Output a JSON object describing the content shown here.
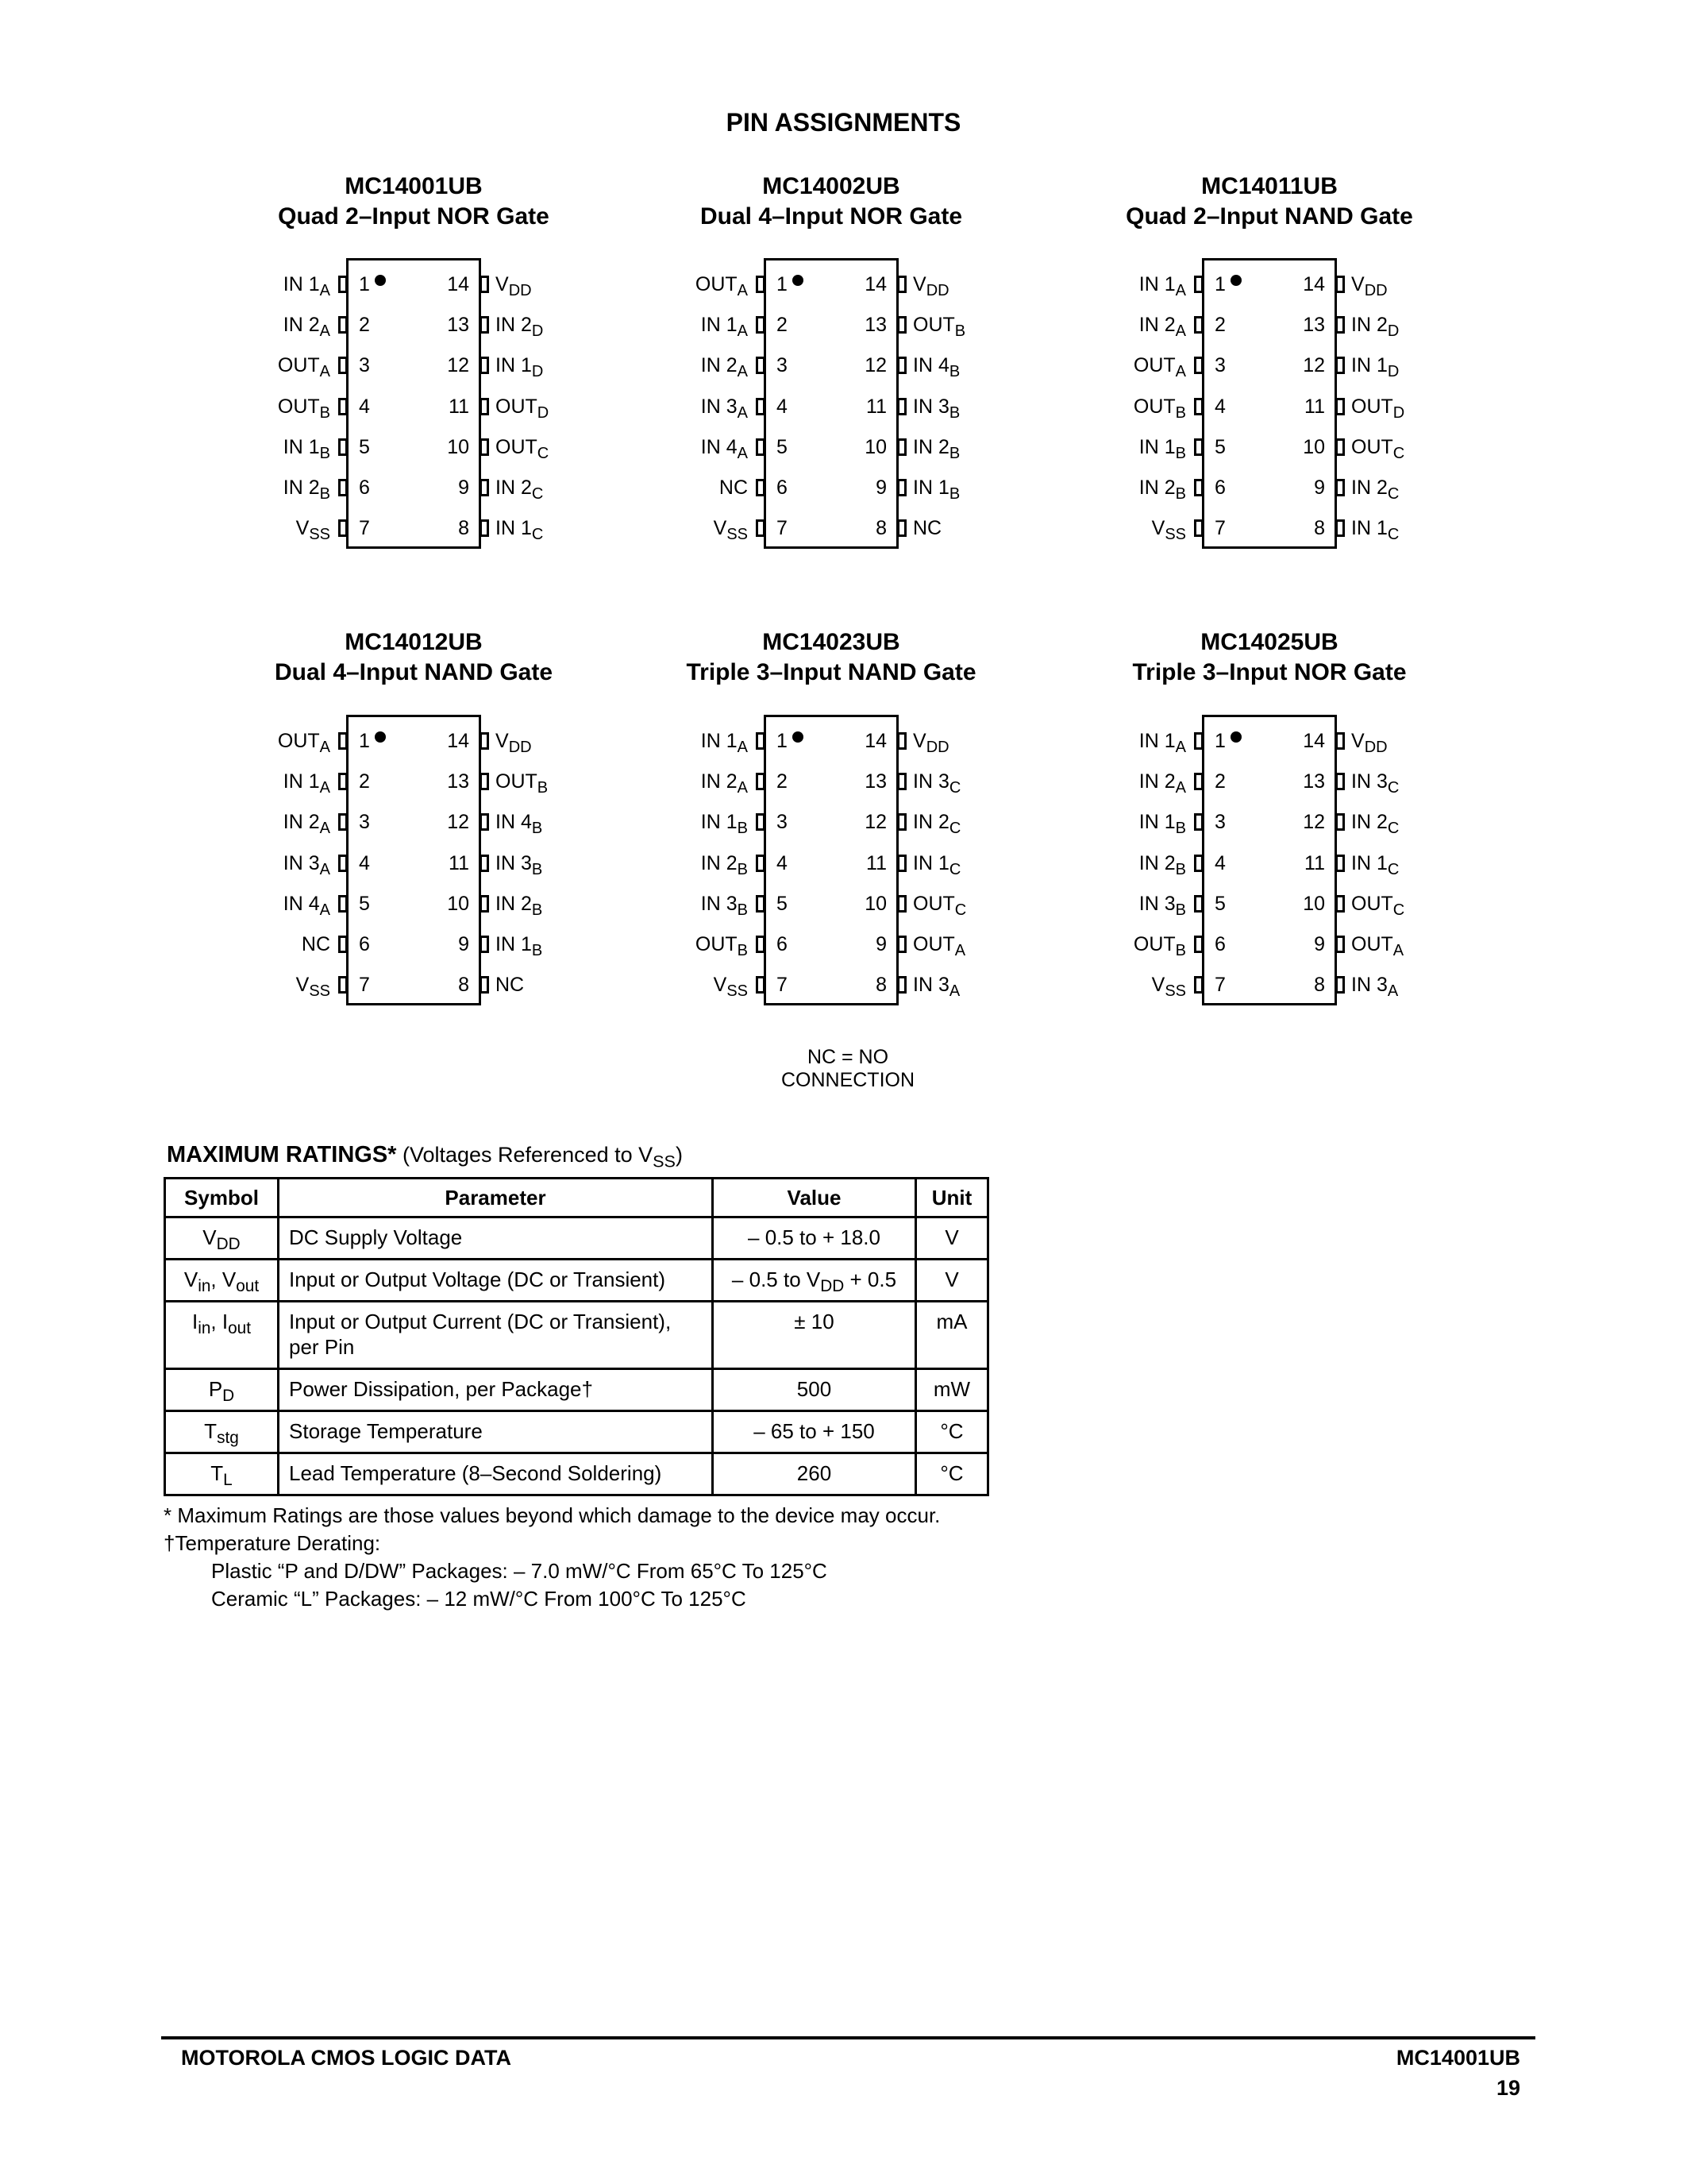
{
  "heading": "PIN ASSIGNMENTS",
  "chips": [
    {
      "part": "MC14001UB",
      "desc": "Quad 2–Input NOR Gate",
      "left": [
        [
          "IN 1",
          "A"
        ],
        [
          "IN 2",
          "A"
        ],
        [
          "OUT",
          "A"
        ],
        [
          "OUT",
          "B"
        ],
        [
          "IN 1",
          "B"
        ],
        [
          "IN 2",
          "B"
        ],
        [
          "V",
          "SS"
        ]
      ],
      "right": [
        [
          "V",
          "DD"
        ],
        [
          "IN 2",
          "D"
        ],
        [
          "IN 1",
          "D"
        ],
        [
          "OUT",
          "D"
        ],
        [
          "OUT",
          "C"
        ],
        [
          "IN 2",
          "C"
        ],
        [
          "IN 1",
          "C"
        ]
      ]
    },
    {
      "part": "MC14002UB",
      "desc": "Dual 4–Input NOR Gate",
      "left": [
        [
          "OUT",
          "A"
        ],
        [
          "IN 1",
          "A"
        ],
        [
          "IN 2",
          "A"
        ],
        [
          "IN 3",
          "A"
        ],
        [
          "IN 4",
          "A"
        ],
        [
          "NC",
          ""
        ],
        [
          "V",
          "SS"
        ]
      ],
      "right": [
        [
          "V",
          "DD"
        ],
        [
          "OUT",
          "B"
        ],
        [
          "IN 4",
          "B"
        ],
        [
          "IN 3",
          "B"
        ],
        [
          "IN 2",
          "B"
        ],
        [
          "IN 1",
          "B"
        ],
        [
          "NC",
          ""
        ]
      ]
    },
    {
      "part": "MC14011UB",
      "desc": "Quad 2–Input NAND Gate",
      "left": [
        [
          "IN 1",
          "A"
        ],
        [
          "IN 2",
          "A"
        ],
        [
          "OUT",
          "A"
        ],
        [
          "OUT",
          "B"
        ],
        [
          "IN 1",
          "B"
        ],
        [
          "IN 2",
          "B"
        ],
        [
          "V",
          "SS"
        ]
      ],
      "right": [
        [
          "V",
          "DD"
        ],
        [
          "IN 2",
          "D"
        ],
        [
          "IN 1",
          "D"
        ],
        [
          "OUT",
          "D"
        ],
        [
          "OUT",
          "C"
        ],
        [
          "IN 2",
          "C"
        ],
        [
          "IN 1",
          "C"
        ]
      ]
    },
    {
      "part": "MC14012UB",
      "desc": "Dual 4–Input NAND Gate",
      "left": [
        [
          "OUT",
          "A"
        ],
        [
          "IN 1",
          "A"
        ],
        [
          "IN 2",
          "A"
        ],
        [
          "IN 3",
          "A"
        ],
        [
          "IN 4",
          "A"
        ],
        [
          "NC",
          ""
        ],
        [
          "V",
          "SS"
        ]
      ],
      "right": [
        [
          "V",
          "DD"
        ],
        [
          "OUT",
          "B"
        ],
        [
          "IN 4",
          "B"
        ],
        [
          "IN 3",
          "B"
        ],
        [
          "IN 2",
          "B"
        ],
        [
          "IN 1",
          "B"
        ],
        [
          "NC",
          ""
        ]
      ]
    },
    {
      "part": "MC14023UB",
      "desc": "Triple 3–Input NAND Gate",
      "left": [
        [
          "IN 1",
          "A"
        ],
        [
          "IN 2",
          "A"
        ],
        [
          "IN 1",
          "B"
        ],
        [
          "IN 2",
          "B"
        ],
        [
          "IN 3",
          "B"
        ],
        [
          "OUT",
          "B"
        ],
        [
          "V",
          "SS"
        ]
      ],
      "right": [
        [
          "V",
          "DD"
        ],
        [
          "IN 3",
          "C"
        ],
        [
          "IN 2",
          "C"
        ],
        [
          "IN 1",
          "C"
        ],
        [
          "OUT",
          "C"
        ],
        [
          "OUT",
          "A"
        ],
        [
          "IN 3",
          "A"
        ]
      ]
    },
    {
      "part": "MC14025UB",
      "desc": "Triple 3–Input NOR Gate",
      "left": [
        [
          "IN 1",
          "A"
        ],
        [
          "IN 2",
          "A"
        ],
        [
          "IN 1",
          "B"
        ],
        [
          "IN 2",
          "B"
        ],
        [
          "IN 3",
          "B"
        ],
        [
          "OUT",
          "B"
        ],
        [
          "V",
          "SS"
        ]
      ],
      "right": [
        [
          "V",
          "DD"
        ],
        [
          "IN 3",
          "C"
        ],
        [
          "IN 2",
          "C"
        ],
        [
          "IN 1",
          "C"
        ],
        [
          "OUT",
          "C"
        ],
        [
          "OUT",
          "A"
        ],
        [
          "IN 3",
          "A"
        ]
      ]
    }
  ],
  "nc_note": "NC = NO CONNECTION",
  "ratings": {
    "title": "MAXIMUM RATINGS*",
    "subtitle_pre": " (Voltages Referenced to V",
    "subtitle_sub": "SS",
    "subtitle_post": ")",
    "headers": [
      "Symbol",
      "Parameter",
      "Value",
      "Unit"
    ],
    "rows": [
      {
        "sym": [
          [
            "V",
            "DD"
          ]
        ],
        "param": "DC Supply Voltage",
        "value": [
          [
            "– 0.5 to + 18.0",
            ""
          ]
        ],
        "unit": "V"
      },
      {
        "sym": [
          [
            "V",
            "in"
          ],
          [
            ", V",
            "out"
          ]
        ],
        "param": "Input or Output Voltage (DC or Transient)",
        "value": [
          [
            "– 0.5 to V",
            "DD"
          ],
          [
            " + 0.5",
            ""
          ]
        ],
        "unit": "V"
      },
      {
        "sym": [
          [
            "I",
            "in"
          ],
          [
            ", I",
            "out"
          ]
        ],
        "param": "Input or Output Current (DC or Transient), per Pin",
        "value": [
          [
            "± 10",
            ""
          ]
        ],
        "unit": "mA"
      },
      {
        "sym": [
          [
            "P",
            "D"
          ]
        ],
        "param": "Power Dissipation, per Package†",
        "value": [
          [
            "500",
            ""
          ]
        ],
        "unit": "mW"
      },
      {
        "sym": [
          [
            "T",
            "stg"
          ]
        ],
        "param": "Storage Temperature",
        "value": [
          [
            "– 65 to + 150",
            ""
          ]
        ],
        "unit": "°C"
      },
      {
        "sym": [
          [
            "T",
            "L"
          ]
        ],
        "param": "Lead Temperature (8–Second Soldering)",
        "value": [
          [
            "260",
            ""
          ]
        ],
        "unit": "°C"
      }
    ],
    "notes": [
      "* Maximum Ratings are those values beyond which damage to the device may occur.",
      "†Temperature Derating:",
      "Plastic “P and D/DW” Packages: – 7.0 mW/°C From 65°C To 125°C",
      "Ceramic “L” Packages: – 12 mW/°C From 100°C To 125°C"
    ]
  },
  "footer": {
    "left": "MOTOROLA CMOS LOGIC DATA",
    "right": "MC14001UB",
    "page": "19"
  }
}
